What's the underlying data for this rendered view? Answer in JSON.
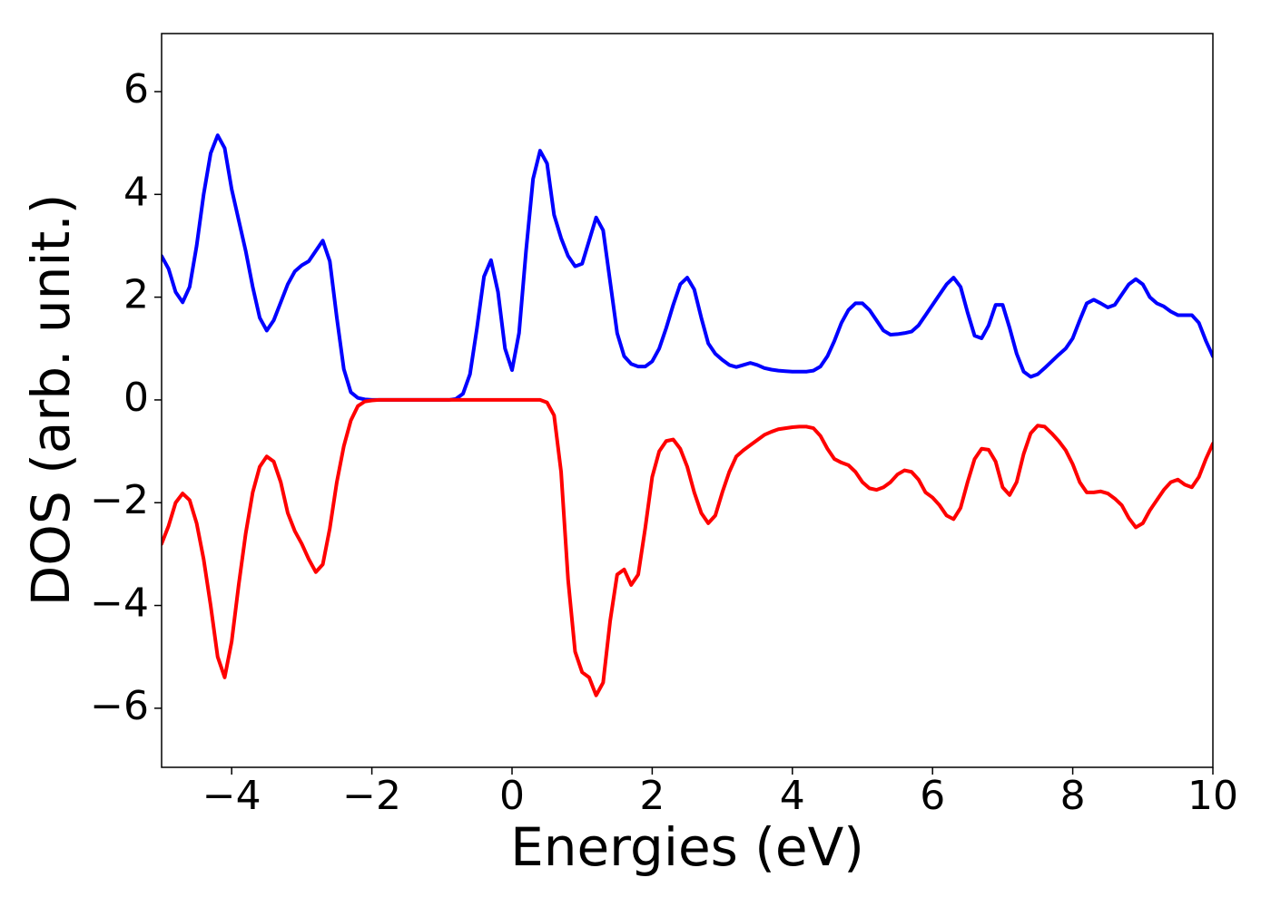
{
  "chart_data": {
    "type": "line",
    "xlabel": "Energies (eV)",
    "ylabel": "DOS (arb. unit.)",
    "x": [
      -5.0,
      -4.9,
      -4.8,
      -4.7,
      -4.6,
      -4.5,
      -4.4,
      -4.3,
      -4.2,
      -4.1,
      -4.0,
      -3.9,
      -3.8,
      -3.7,
      -3.6,
      -3.5,
      -3.4,
      -3.3,
      -3.2,
      -3.1,
      -3.0,
      -2.9,
      -2.8,
      -2.7,
      -2.6,
      -2.5,
      -2.4,
      -2.3,
      -2.2,
      -2.1,
      -2.0,
      -1.9,
      -1.8,
      -1.7,
      -1.6,
      -1.5,
      -1.4,
      -1.3,
      -1.2,
      -1.1,
      -1.0,
      -0.9,
      -0.8,
      -0.7,
      -0.6,
      -0.5,
      -0.4,
      -0.3,
      -0.2,
      -0.1,
      0.0,
      0.1,
      0.2,
      0.3,
      0.4,
      0.5,
      0.6,
      0.7,
      0.8,
      0.9,
      1.0,
      1.1,
      1.2,
      1.3,
      1.4,
      1.5,
      1.6,
      1.7,
      1.8,
      1.9,
      2.0,
      2.1,
      2.2,
      2.3,
      2.4,
      2.5,
      2.6,
      2.7,
      2.8,
      2.9,
      3.0,
      3.1,
      3.2,
      3.3,
      3.4,
      3.5,
      3.6,
      3.7,
      3.8,
      3.9,
      4.0,
      4.1,
      4.2,
      4.3,
      4.4,
      4.5,
      4.6,
      4.7,
      4.8,
      4.9,
      5.0,
      5.1,
      5.2,
      5.3,
      5.4,
      5.5,
      5.6,
      5.7,
      5.8,
      5.9,
      6.0,
      6.1,
      6.2,
      6.3,
      6.4,
      6.5,
      6.6,
      6.7,
      6.8,
      6.9,
      7.0,
      7.1,
      7.2,
      7.3,
      7.4,
      7.5,
      7.6,
      7.7,
      7.8,
      7.9,
      8.0,
      8.1,
      8.2,
      8.3,
      8.4,
      8.5,
      8.6,
      8.7,
      8.8,
      8.9,
      9.0,
      9.1,
      9.2,
      9.3,
      9.4,
      9.5,
      9.6,
      9.7,
      9.8,
      9.9,
      10.0
    ],
    "series": [
      {
        "color": "#0000ff",
        "values": [
          2.8,
          2.55,
          2.1,
          1.9,
          2.2,
          3.0,
          4.0,
          4.8,
          5.15,
          4.9,
          4.1,
          3.5,
          2.9,
          2.2,
          1.6,
          1.35,
          1.55,
          1.9,
          2.25,
          2.5,
          2.62,
          2.7,
          2.9,
          3.1,
          2.7,
          1.6,
          0.6,
          0.15,
          0.04,
          0.01,
          0,
          0,
          0,
          0,
          0,
          0,
          0,
          0,
          0,
          0,
          0,
          0,
          0.02,
          0.12,
          0.5,
          1.4,
          2.4,
          2.72,
          2.1,
          1.0,
          0.58,
          1.3,
          2.9,
          4.3,
          4.85,
          4.6,
          3.6,
          3.15,
          2.8,
          2.6,
          2.65,
          3.1,
          3.55,
          3.3,
          2.3,
          1.3,
          0.85,
          0.7,
          0.65,
          0.65,
          0.75,
          1.0,
          1.4,
          1.85,
          2.25,
          2.38,
          2.15,
          1.6,
          1.1,
          0.9,
          0.78,
          0.68,
          0.64,
          0.68,
          0.72,
          0.68,
          0.62,
          0.59,
          0.57,
          0.56,
          0.55,
          0.55,
          0.55,
          0.57,
          0.65,
          0.85,
          1.15,
          1.5,
          1.75,
          1.88,
          1.88,
          1.75,
          1.55,
          1.35,
          1.27,
          1.28,
          1.3,
          1.33,
          1.45,
          1.65,
          1.85,
          2.05,
          2.25,
          2.38,
          2.2,
          1.7,
          1.25,
          1.2,
          1.45,
          1.85,
          1.85,
          1.4,
          0.9,
          0.55,
          0.45,
          0.5,
          0.62,
          0.75,
          0.88,
          1.0,
          1.2,
          1.55,
          1.88,
          1.95,
          1.88,
          1.8,
          1.85,
          2.05,
          2.25,
          2.35,
          2.25,
          2.0,
          1.88,
          1.82,
          1.72,
          1.65,
          1.65,
          1.65,
          1.5,
          1.15,
          0.85
        ]
      },
      {
        "color": "#ff0000",
        "values": [
          -2.8,
          -2.45,
          -2.0,
          -1.82,
          -1.95,
          -2.4,
          -3.1,
          -4.0,
          -5.0,
          -5.4,
          -4.7,
          -3.6,
          -2.6,
          -1.8,
          -1.3,
          -1.1,
          -1.2,
          -1.6,
          -2.2,
          -2.55,
          -2.8,
          -3.1,
          -3.35,
          -3.2,
          -2.5,
          -1.6,
          -0.9,
          -0.4,
          -0.12,
          -0.03,
          -0.01,
          0,
          0,
          0,
          0,
          0,
          0,
          0,
          0,
          0,
          0,
          0,
          0,
          0,
          0,
          0,
          0,
          0,
          0,
          0,
          0,
          0,
          0,
          0,
          0,
          -0.05,
          -0.3,
          -1.4,
          -3.5,
          -4.9,
          -5.3,
          -5.4,
          -5.75,
          -5.5,
          -4.3,
          -3.4,
          -3.3,
          -3.6,
          -3.4,
          -2.5,
          -1.5,
          -1.0,
          -0.8,
          -0.77,
          -0.95,
          -1.3,
          -1.8,
          -2.2,
          -2.4,
          -2.25,
          -1.8,
          -1.4,
          -1.1,
          -0.98,
          -0.88,
          -0.78,
          -0.68,
          -0.62,
          -0.57,
          -0.55,
          -0.53,
          -0.52,
          -0.52,
          -0.55,
          -0.7,
          -0.95,
          -1.15,
          -1.22,
          -1.27,
          -1.4,
          -1.6,
          -1.72,
          -1.75,
          -1.7,
          -1.6,
          -1.45,
          -1.37,
          -1.4,
          -1.55,
          -1.8,
          -1.9,
          -2.05,
          -2.25,
          -2.32,
          -2.1,
          -1.6,
          -1.15,
          -0.95,
          -0.97,
          -1.2,
          -1.7,
          -1.85,
          -1.6,
          -1.05,
          -0.65,
          -0.5,
          -0.52,
          -0.65,
          -0.8,
          -0.98,
          -1.25,
          -1.6,
          -1.8,
          -1.8,
          -1.78,
          -1.82,
          -1.92,
          -2.05,
          -2.3,
          -2.48,
          -2.4,
          -2.15,
          -1.95,
          -1.75,
          -1.6,
          -1.55,
          -1.65,
          -1.7,
          -1.5,
          -1.15,
          -0.85
        ]
      }
    ],
    "xlim": [
      -5,
      10
    ],
    "ylim": [
      -7.15,
      7.13
    ],
    "xticks": [
      {
        "value": -4,
        "label": "−4"
      },
      {
        "value": -2,
        "label": "−2"
      },
      0,
      2,
      4,
      6,
      8,
      10
    ],
    "yticks": [
      {
        "value": -6,
        "label": "−6"
      },
      {
        "value": -4,
        "label": "−4"
      },
      {
        "value": -2,
        "label": "−2"
      },
      0,
      2,
      4,
      6
    ],
    "grid": false
  }
}
